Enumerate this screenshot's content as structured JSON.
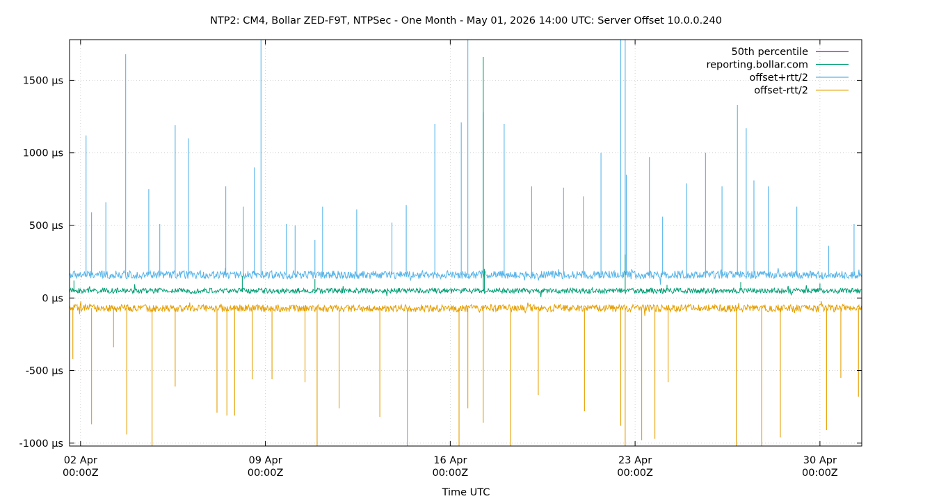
{
  "chart_data": {
    "type": "line",
    "title": "NTP2: CM4, Bollar ZED-F9T, NTPSec - One Month - May 01, 2026 14:00 UTC: Server Offset 10.0.0.240",
    "xlabel": "Time UTC",
    "ylabel": "",
    "y_unit": "µs",
    "ylim": [
      -1020,
      1780
    ],
    "xlim": [
      "2026-04-01T14:00Z",
      "2026-05-01T14:00Z"
    ],
    "grid": true,
    "legend_position": "top-right",
    "y_ticks": [
      {
        "value": 1500,
        "label": "1500 µs"
      },
      {
        "value": 1000,
        "label": "1000 µs"
      },
      {
        "value": 500,
        "label": "500 µs"
      },
      {
        "value": 0,
        "label": "0 µs"
      },
      {
        "value": -500,
        "label": "-500 µs"
      },
      {
        "value": -1000,
        "label": "-1000 µs"
      }
    ],
    "x_ticks": [
      {
        "value": "2026-04-02T00:00Z",
        "label": [
          "02 Apr",
          "00:00Z"
        ]
      },
      {
        "value": "2026-04-09T00:00Z",
        "label": [
          "09 Apr",
          "00:00Z"
        ]
      },
      {
        "value": "2026-04-16T00:00Z",
        "label": [
          "16 Apr",
          "00:00Z"
        ]
      },
      {
        "value": "2026-04-23T00:00Z",
        "label": [
          "23 Apr",
          "00:00Z"
        ]
      },
      {
        "value": "2026-04-30T00:00Z",
        "label": [
          "30 Apr",
          "00:00Z"
        ]
      }
    ],
    "series": [
      {
        "name": "50th percentile",
        "color": "#9400d3",
        "x": [
          "2026-04-01T14:00Z",
          "2026-05-01T14:00Z"
        ],
        "y": [
          55,
          55
        ]
      },
      {
        "name": "reporting.bollar.com",
        "color": "#009e73",
        "baseline": 50,
        "noise": 18,
        "x": [
          "2026-04-01T18:00Z",
          "2026-04-08T03:00Z",
          "2026-04-10T21:00Z",
          "2026-04-17T06:00Z",
          "2026-04-17T07:00Z",
          "2026-04-22T15:00Z",
          "2026-04-24T05:00Z",
          "2026-04-27T00:00Z",
          "2026-04-30T00:00Z"
        ],
        "y": [
          120,
          150,
          130,
          1660,
          200,
          300,
          90,
          110,
          100
        ]
      },
      {
        "name": "offset+rtt/2",
        "color": "#56b4e9",
        "baseline": 160,
        "noise": 28,
        "x": [
          "2026-04-02T05:00Z",
          "2026-04-02T10:00Z",
          "2026-04-02T23:00Z",
          "2026-04-03T17:00Z",
          "2026-04-04T14:00Z",
          "2026-04-05T00:00Z",
          "2026-04-05T14:00Z",
          "2026-04-06T02:00Z",
          "2026-04-07T12:00Z",
          "2026-04-08T04:00Z",
          "2026-04-08T14:00Z",
          "2026-04-08T20:00Z",
          "2026-04-09T19:00Z",
          "2026-04-10T03:00Z",
          "2026-04-10T21:00Z",
          "2026-04-11T04:00Z",
          "2026-04-12T11:00Z",
          "2026-04-13T19:00Z",
          "2026-04-14T08:00Z",
          "2026-04-15T10:00Z",
          "2026-04-16T10:00Z",
          "2026-04-16T16:00Z",
          "2026-04-17T06:00Z",
          "2026-04-18T01:00Z",
          "2026-04-19T02:00Z",
          "2026-04-20T07:00Z",
          "2026-04-21T01:00Z",
          "2026-04-21T17:00Z",
          "2026-04-22T11:00Z",
          "2026-04-22T15:00Z",
          "2026-04-22T16:00Z",
          "2026-04-23T13:00Z",
          "2026-04-24T01:00Z",
          "2026-04-24T23:00Z",
          "2026-04-25T16:00Z",
          "2026-04-26T07:00Z",
          "2026-04-26T21:00Z",
          "2026-04-27T05:00Z",
          "2026-04-27T12:00Z",
          "2026-04-28T01:00Z",
          "2026-04-29T03:00Z",
          "2026-04-30T08:00Z",
          "2026-05-01T07:00Z"
        ],
        "y": [
          1120,
          590,
          660,
          1680,
          750,
          510,
          1190,
          1100,
          770,
          630,
          900,
          1780,
          510,
          500,
          400,
          630,
          610,
          520,
          640,
          1200,
          1210,
          1780,
          1280,
          1200,
          770,
          760,
          700,
          1000,
          1780,
          1780,
          850,
          970,
          560,
          790,
          1000,
          770,
          1330,
          1170,
          810,
          770,
          630,
          360,
          510
        ]
      },
      {
        "name": "offset-rtt/2",
        "color": "#e69f00",
        "baseline": -70,
        "noise": 25,
        "x": [
          "2026-04-01T17:00Z",
          "2026-04-02T10:00Z",
          "2026-04-03T06:00Z",
          "2026-04-03T18:00Z",
          "2026-04-04T17:00Z",
          "2026-04-05T14:00Z",
          "2026-04-07T04:00Z",
          "2026-04-07T13:00Z",
          "2026-04-07T20:00Z",
          "2026-04-08T12:00Z",
          "2026-04-09T06:00Z",
          "2026-04-10T12:00Z",
          "2026-04-10T23:00Z",
          "2026-04-11T19:00Z",
          "2026-04-13T08:00Z",
          "2026-04-14T09:00Z",
          "2026-04-16T08:00Z",
          "2026-04-16T16:00Z",
          "2026-04-17T06:00Z",
          "2026-04-18T07:00Z",
          "2026-04-19T08:00Z",
          "2026-04-21T02:00Z",
          "2026-04-22T11:00Z",
          "2026-04-22T15:00Z",
          "2026-04-23T06:00Z",
          "2026-04-23T18:00Z",
          "2026-04-24T06:00Z",
          "2026-04-26T20:00Z",
          "2026-04-27T19:00Z",
          "2026-04-28T12:00Z",
          "2026-04-30T06:00Z",
          "2026-04-30T19:00Z",
          "2026-05-01T11:00Z"
        ],
        "y": [
          -420,
          -870,
          -340,
          -940,
          -1020,
          -610,
          -790,
          -810,
          -810,
          -560,
          -560,
          -580,
          -1020,
          -760,
          -820,
          -1020,
          -1020,
          -760,
          -860,
          -1020,
          -670,
          -780,
          -880,
          -1020,
          -980,
          -970,
          -580,
          -1020,
          -1020,
          -960,
          -910,
          -550,
          -680
        ]
      }
    ]
  }
}
